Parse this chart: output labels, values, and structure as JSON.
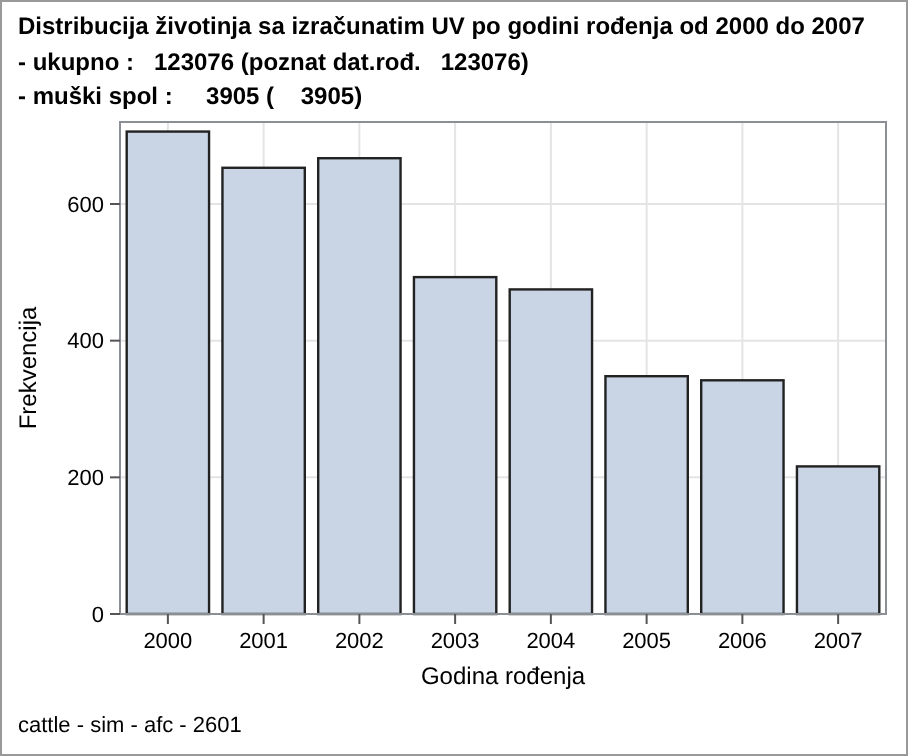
{
  "chart_data": {
    "type": "bar",
    "title": "Distribucija životinja sa izračunatim UV po godini rođenja od 2000 do 2007",
    "subtitle": "- ukupno :   123076 (poznat dat.rođ.   123076)\n- muški spol :     3905 (    3905)",
    "xlabel": "Godina rođenja",
    "ylabel": "Frekvencija",
    "categories": [
      "2000",
      "2001",
      "2002",
      "2003",
      "2004",
      "2005",
      "2006",
      "2007"
    ],
    "values": [
      706,
      653,
      667,
      493,
      475,
      348,
      342,
      216
    ],
    "color": "#c9d5e5",
    "ylim": [
      0,
      720
    ],
    "yticks": [
      0,
      200,
      400,
      600
    ],
    "grid": true,
    "annotations": [
      "cattle - sim - afc - 2601"
    ]
  }
}
